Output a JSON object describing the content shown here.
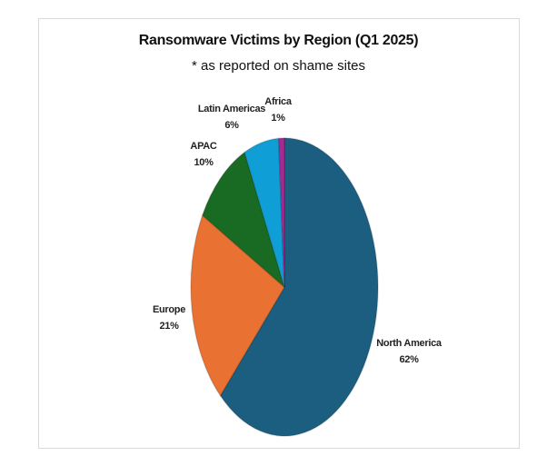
{
  "chart_data": {
    "type": "pie",
    "title": "Ransomware Victims by Region (Q1 2025)",
    "subtitle": "* as reported on shame sites",
    "categories": [
      "North America",
      "Europe",
      "APAC",
      "Latin Americas",
      "Africa"
    ],
    "values": [
      62,
      21,
      10,
      6,
      1
    ],
    "value_labels": [
      "62%",
      "21%",
      "10%",
      "6%",
      "1%"
    ],
    "colors": [
      "#1b5e80",
      "#e97132",
      "#196b24",
      "#0f9ed5",
      "#a02b93"
    ],
    "start_angle_deg": 0,
    "direction": "clockwise",
    "legend": "none"
  }
}
